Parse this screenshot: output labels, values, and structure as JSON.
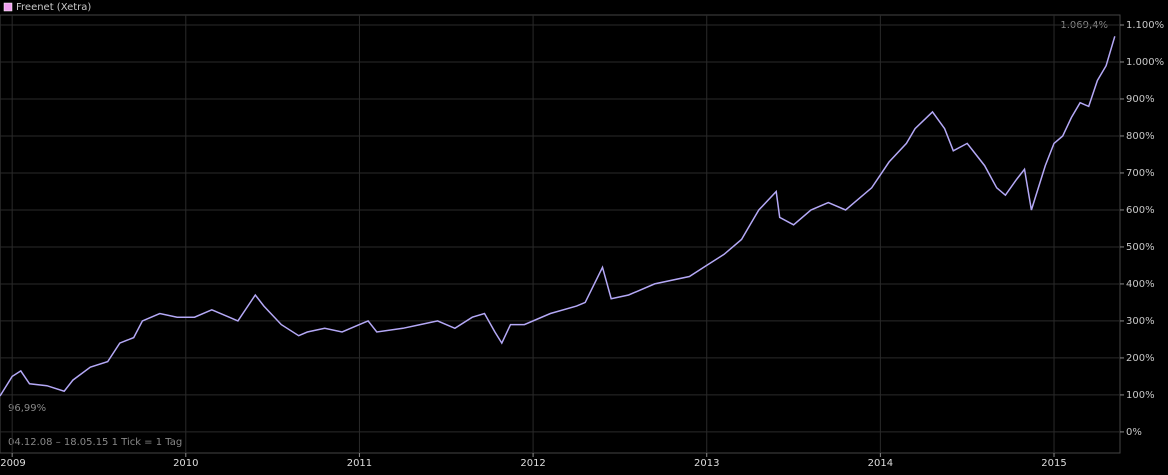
{
  "chart_data": {
    "type": "line",
    "series": [
      {
        "name": "Freenet (Xetra)",
        "color": "#b4a8f6",
        "values": [
          97,
          150,
          165,
          130,
          125,
          110,
          140,
          175,
          190,
          240,
          255,
          300,
          320,
          310,
          310,
          330,
          310,
          300,
          370,
          340,
          290,
          260,
          270,
          280,
          270,
          290,
          300,
          270,
          280,
          290,
          300,
          280,
          310,
          320,
          270,
          240,
          290,
          290,
          320,
          340,
          350,
          445,
          360,
          370,
          400,
          420,
          450,
          480,
          520,
          560,
          600,
          650,
          580,
          560,
          600,
          620,
          600,
          620,
          660,
          730,
          780,
          820,
          865,
          820,
          760,
          780,
          750,
          720,
          660,
          640,
          680,
          710,
          600,
          720,
          780,
          800,
          850,
          890,
          880,
          950,
          990,
          1069.4
        ]
      }
    ],
    "x": [
      2008.93,
      2009.0,
      2009.05,
      2009.1,
      2009.2,
      2009.3,
      2009.35,
      2009.45,
      2009.55,
      2009.62,
      2009.7,
      2009.75,
      2009.85,
      2009.95,
      2010.05,
      2010.15,
      2010.25,
      2010.3,
      2010.4,
      2010.45,
      2010.55,
      2010.65,
      2010.7,
      2010.8,
      2010.9,
      2011.0,
      2011.05,
      2011.1,
      2011.25,
      2011.35,
      2011.45,
      2011.55,
      2011.65,
      2011.72,
      2011.78,
      2011.82,
      2011.87,
      2011.95,
      2012.1,
      2012.25,
      2012.3,
      2012.4,
      2012.45,
      2012.55,
      2012.7,
      2012.9,
      2013.0,
      2013.1,
      2013.2,
      2013.25,
      2013.3,
      2013.4,
      2013.42,
      2013.5,
      2013.6,
      2013.7,
      2013.8,
      2013.85,
      2013.95,
      2014.05,
      2014.15,
      2014.2,
      2014.3,
      2014.37,
      2014.42,
      2014.5,
      2014.55,
      2014.6,
      2014.67,
      2014.72,
      2014.78,
      2014.83,
      2014.87,
      2014.95,
      2015.0,
      2015.05,
      2015.1,
      2015.15,
      2015.2,
      2015.25,
      2015.3,
      2015.35
    ],
    "xlim": [
      2008.93,
      2015.38
    ],
    "xticks": [
      2009,
      2010,
      2011,
      2012,
      2013,
      2014,
      2015
    ],
    "ylim": [
      -57,
      1127
    ],
    "yticks": [
      {
        "value": 0,
        "label": "0%"
      },
      {
        "value": 100,
        "label": "100%"
      },
      {
        "value": 200,
        "label": "200%"
      },
      {
        "value": 300,
        "label": "300%"
      },
      {
        "value": 400,
        "label": "400%"
      },
      {
        "value": 500,
        "label": "500%"
      },
      {
        "value": 600,
        "label": "600%"
      },
      {
        "value": 700,
        "label": "700%"
      },
      {
        "value": 800,
        "label": "800%"
      },
      {
        "value": 900,
        "label": "900%"
      },
      {
        "value": 1000,
        "label": "1.000%"
      },
      {
        "value": 1100,
        "label": "1.100%"
      }
    ],
    "grid": true,
    "annotations": {
      "last_value": "1.069,4%",
      "first_value": "96,99%",
      "range": "04.12.08 – 18.05.15   1 Tick = 1 Tag"
    }
  }
}
